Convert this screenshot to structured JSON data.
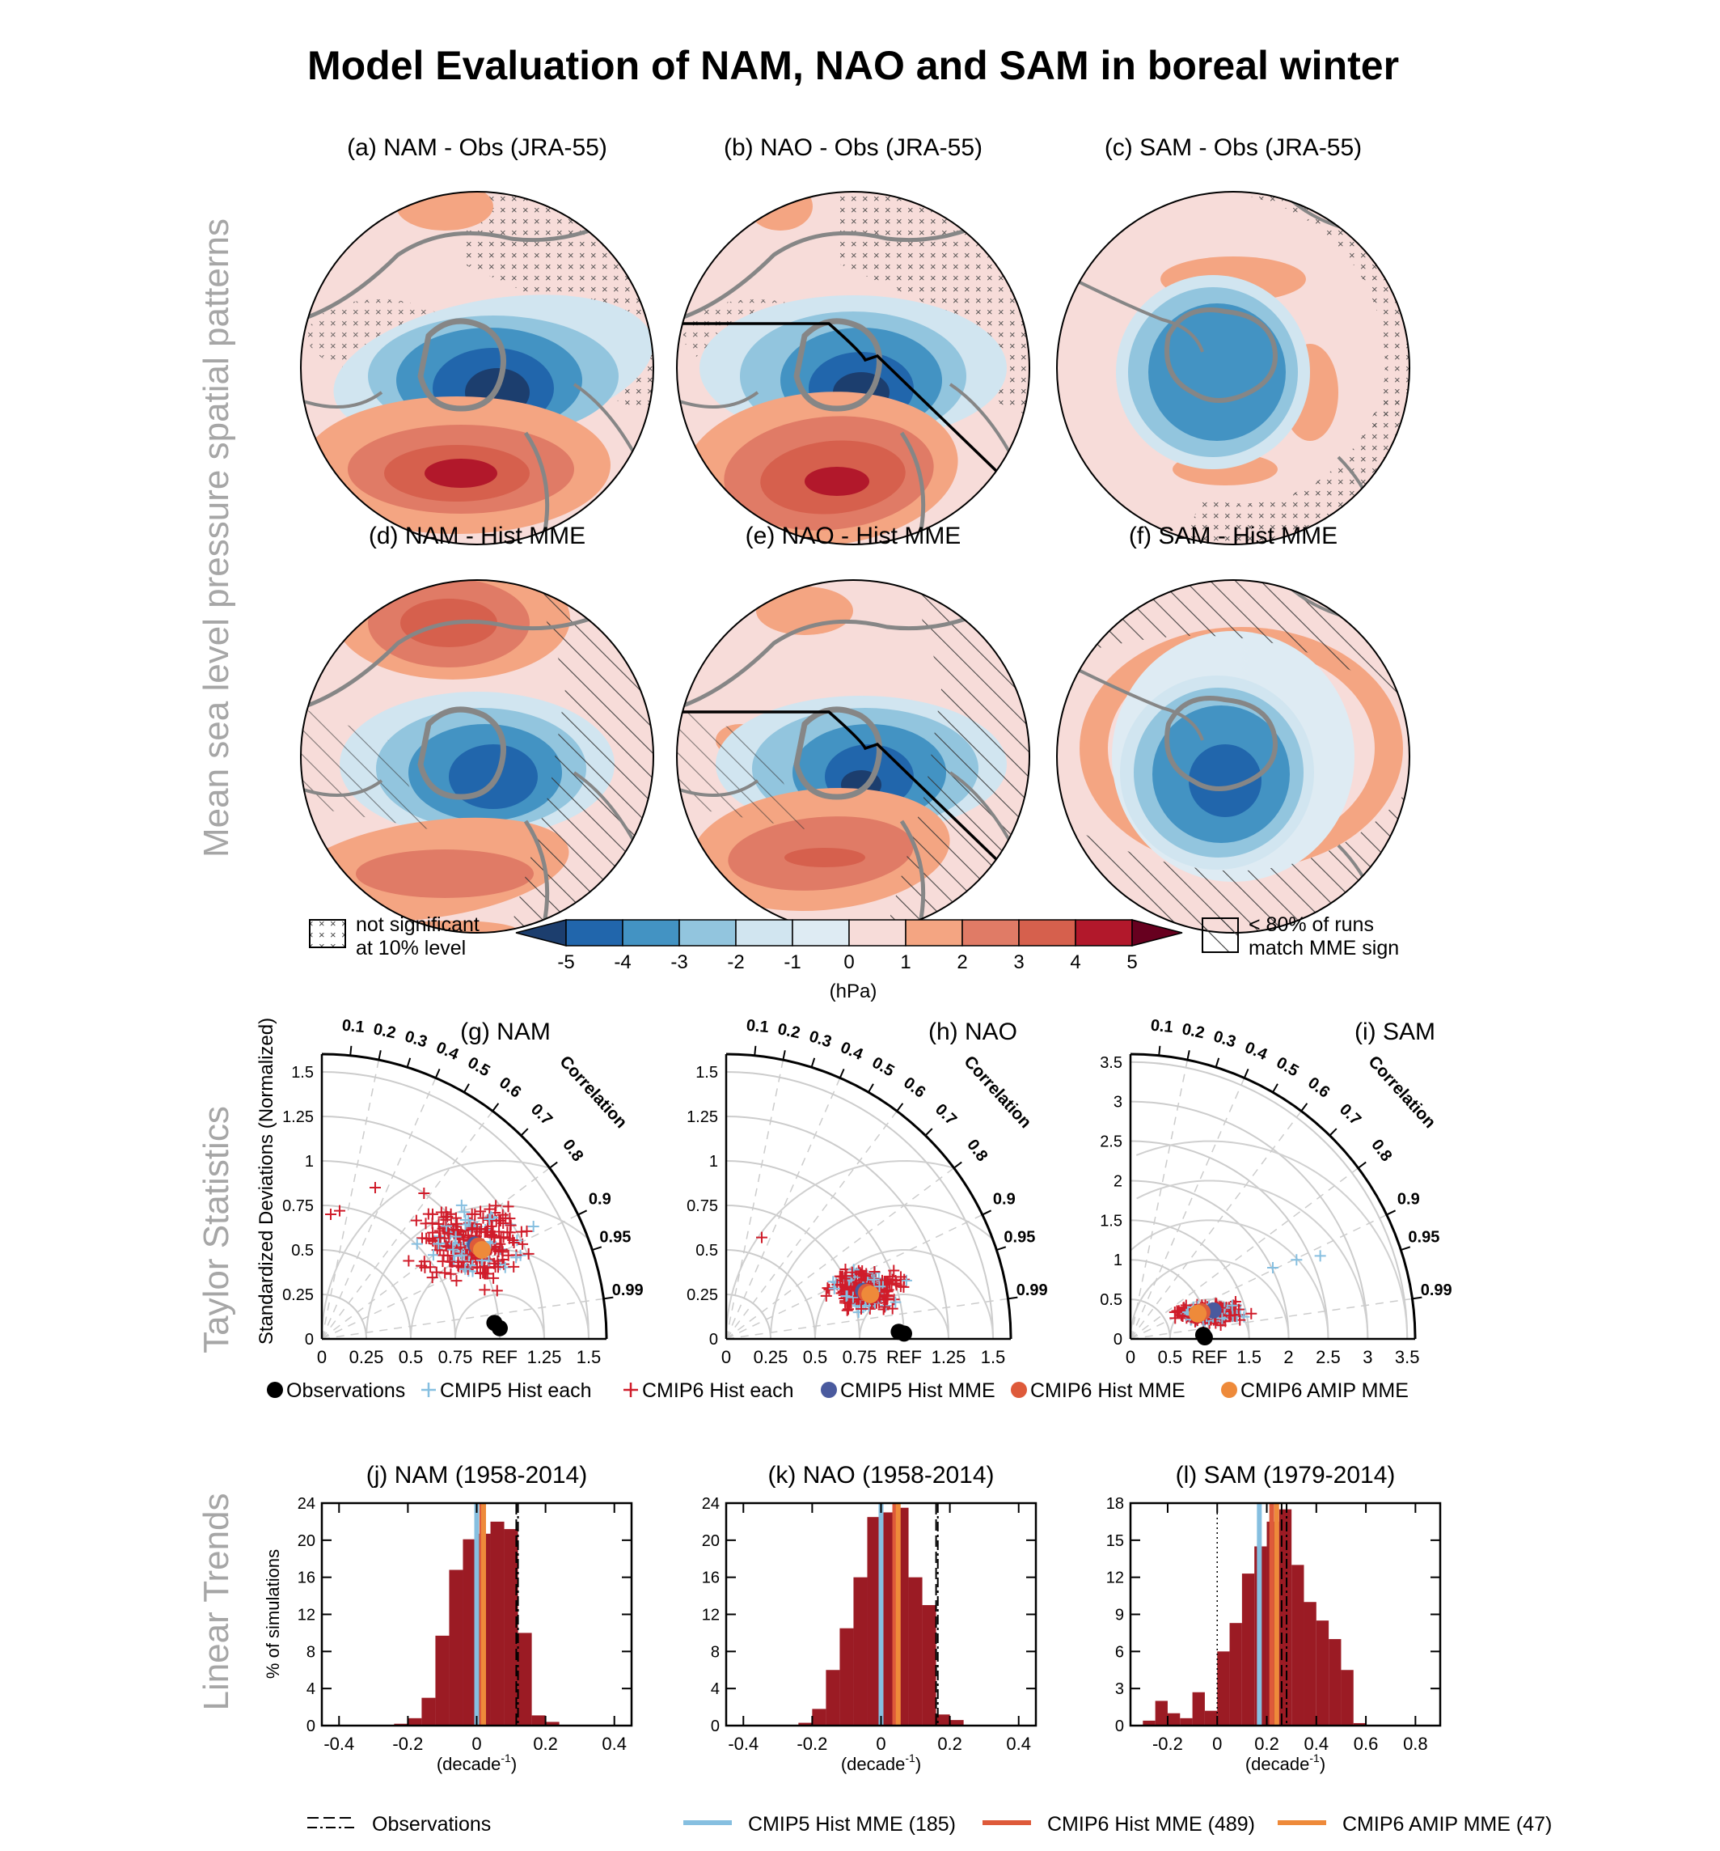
{
  "title": "Model Evaluation of NAM, NAO and SAM in boreal winter",
  "row_labels": {
    "maps": "Mean sea level pressure spatial patterns",
    "taylor": "Taylor Statistics",
    "trends": "Linear Trends"
  },
  "map_titles": [
    "(a) NAM - Obs (JRA-55)",
    "(b) NAO - Obs (JRA-55)",
    "(c) SAM - Obs (JRA-55)",
    "(d) NAM - Hist MME",
    "(e) NAO - Hist MME",
    "(f) SAM - Hist MME"
  ],
  "colorbar": {
    "ticks": [
      "-5",
      "-4",
      "-3",
      "-2",
      "-1",
      "0",
      "1",
      "2",
      "3",
      "4",
      "5"
    ],
    "unit": "(hPa)",
    "colors": [
      "#1c3e6e",
      "#2166ac",
      "#4393c3",
      "#92c5de",
      "#d1e5f0",
      "#deebf3",
      "#f7dcd9",
      "#f4a582",
      "#e07b66",
      "#d6604d",
      "#b2182b",
      "#67001f"
    ],
    "stipple_label_1": "not significant",
    "stipple_label_2": "at 10% level",
    "hatch_label_1": "< 80% of runs",
    "hatch_label_2": "match MME sign"
  },
  "taylor_titles": [
    "(g) NAM",
    "(h) NAO",
    "(i) SAM"
  ],
  "taylor_ylabel": "Standardized Deviations (Normalized)",
  "taylor_corr_label": "Correlation",
  "taylor_corr_ticks": [
    "0.1",
    "0.2",
    "0.3",
    "0.4",
    "0.5",
    "0.6",
    "0.7",
    "0.8",
    "0.9",
    "0.95",
    "0.99"
  ],
  "taylor_axes": [
    {
      "max": 1.6,
      "ticks": [
        "0",
        "0.25",
        "0.5",
        "0.75",
        "REF",
        "1.25",
        "1.5"
      ],
      "yticks": [
        "0",
        "0.25",
        "0.5",
        "0.75",
        "1",
        "1.25",
        "1.5"
      ]
    },
    {
      "max": 1.6,
      "ticks": [
        "0",
        "0.25",
        "0.5",
        "0.75",
        "REF",
        "1.25",
        "1.5"
      ],
      "yticks": [
        "0",
        "0.25",
        "0.5",
        "0.75",
        "1",
        "1.25",
        "1.5"
      ]
    },
    {
      "max": 3.6,
      "ticks": [
        "0",
        "0.5",
        "REF",
        "1.5",
        "2",
        "2.5",
        "3",
        "3.5"
      ],
      "yticks": [
        "0",
        "0.5",
        "1",
        "1.5",
        "2",
        "2.5",
        "3",
        "3.5"
      ]
    }
  ],
  "taylor_legend": [
    "Observations",
    "CMIP5 Hist each",
    "CMIP6 Hist each",
    "CMIP5 Hist MME",
    "CMIP6 Hist MME",
    "CMIP6 AMIP MME"
  ],
  "trend_titles": [
    "(j) NAM (1958-2014)",
    "(k) NAO (1958-2014)",
    "(l) SAM (1979-2014)"
  ],
  "trend_ylabel": "% of simulations",
  "trend_xlabel": "(decade",
  "trend_xlabel_sup": "-1",
  "trend_legend": [
    "Observations",
    "CMIP5 Hist MME (185)",
    "CMIP6 Hist MME (489)",
    "CMIP6 AMIP MME (47)"
  ],
  "colors": {
    "cmip5": "#86bfe0",
    "cmip6": "#d01c2a",
    "cmip5_mme": "#4a5a9e",
    "cmip6_mme": "#de5a3a",
    "amip_mme": "#ee8a3a",
    "hist_bar": "#9b1b24",
    "row_label": "#a6a6a6"
  },
  "chart_data": [
    {
      "type": "bar",
      "title": "(j) NAM (1958-2014)",
      "xlabel": "(decade-1)",
      "ylabel": "% of simulations",
      "xlim": [
        -0.45,
        0.45
      ],
      "ylim": [
        0,
        24
      ],
      "xticks": [
        -0.4,
        -0.2,
        0,
        0.2,
        0.4
      ],
      "yticks": [
        0,
        4,
        8,
        12,
        16,
        20,
        24
      ],
      "bin_width": 0.04,
      "bin_starts": [
        -0.24,
        -0.2,
        -0.16,
        -0.12,
        -0.08,
        -0.04,
        0.0,
        0.04,
        0.08,
        0.12,
        0.16,
        0.2
      ],
      "values": [
        0.2,
        0.8,
        3.0,
        9.7,
        16.8,
        20.1,
        20.7,
        22.0,
        21.2,
        10.0,
        1.1,
        0.4
      ],
      "cmip5_mme": 0.0,
      "cmip6_mme": 0.015,
      "amip_mme": 0.02,
      "obs": [
        0.115,
        0.12
      ]
    },
    {
      "type": "bar",
      "title": "(k) NAO (1958-2014)",
      "xlabel": "(decade-1)",
      "ylabel": "% of simulations",
      "xlim": [
        -0.45,
        0.45
      ],
      "ylim": [
        0,
        24
      ],
      "xticks": [
        -0.4,
        -0.2,
        0,
        0.2,
        0.4
      ],
      "yticks": [
        0,
        4,
        8,
        12,
        16,
        20,
        24
      ],
      "bin_width": 0.04,
      "bin_starts": [
        -0.24,
        -0.2,
        -0.16,
        -0.12,
        -0.08,
        -0.04,
        0.0,
        0.04,
        0.08,
        0.12,
        0.16,
        0.2
      ],
      "values": [
        0.3,
        1.8,
        6.0,
        10.5,
        16.0,
        22.5,
        23.0,
        23.5,
        16.0,
        13.0,
        1.2,
        0.6
      ],
      "cmip5_mme": 0.0,
      "cmip6_mme": 0.04,
      "amip_mme": 0.05,
      "obs": [
        0.16,
        0.165
      ]
    },
    {
      "type": "bar",
      "title": "(l) SAM (1979-2014)",
      "xlabel": "(decade-1)",
      "ylabel": "% of simulations",
      "xlim": [
        -0.35,
        0.9
      ],
      "ylim": [
        0,
        18
      ],
      "xticks": [
        -0.2,
        0,
        0.2,
        0.4,
        0.6,
        0.8
      ],
      "yticks": [
        0,
        3,
        6,
        9,
        12,
        15,
        18
      ],
      "bin_width": 0.05,
      "bin_starts": [
        -0.3,
        -0.25,
        -0.2,
        -0.15,
        -0.1,
        -0.05,
        0.0,
        0.05,
        0.1,
        0.15,
        0.2,
        0.25,
        0.3,
        0.35,
        0.4,
        0.45,
        0.5,
        0.55
      ],
      "values": [
        0.4,
        2.0,
        1.0,
        0.6,
        2.7,
        1.2,
        6.0,
        8.3,
        12.3,
        14.5,
        16.5,
        17.5,
        13.0,
        10.0,
        8.5,
        7.0,
        4.5,
        0.2
      ],
      "cmip5_mme": 0.17,
      "cmip6_mme": 0.22,
      "amip_mme": 0.24,
      "obs": [
        0.26,
        0.28
      ],
      "zero_line": 0
    }
  ]
}
